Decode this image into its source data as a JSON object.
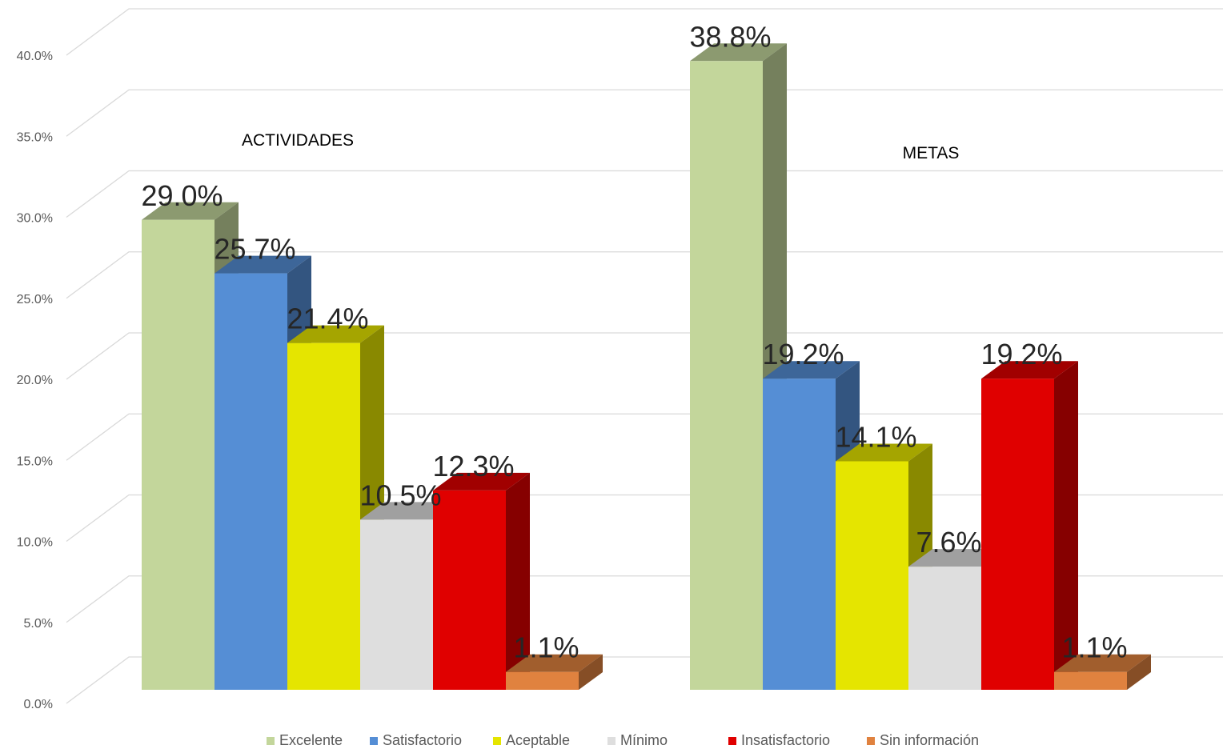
{
  "chart_data": {
    "type": "bar",
    "categories": [
      "ACTIVIDADES",
      "METAS"
    ],
    "series": [
      {
        "name": "Excelente",
        "values": [
          29.0,
          38.8
        ],
        "color": "#c3d69b"
      },
      {
        "name": "Satisfactorio",
        "values": [
          25.7,
          19.2
        ],
        "color": "#558ed5"
      },
      {
        "name": "Aceptable",
        "values": [
          21.4,
          14.1
        ],
        "color": "#e5e500"
      },
      {
        "name": "Mínimo",
        "values": [
          10.5,
          7.6
        ],
        "color": "#dedede"
      },
      {
        "name": "Insatisfactorio",
        "values": [
          12.3,
          19.2
        ],
        "color": "#e00000"
      },
      {
        "name": "Sin información",
        "values": [
          1.1,
          1.1
        ],
        "color": "#e0823f"
      }
    ],
    "data_labels": [
      [
        "29.0%",
        "38.8%"
      ],
      [
        "25.7%",
        "19.2%"
      ],
      [
        "21.4%",
        "14.1%"
      ],
      [
        "10.5%",
        "7.6%"
      ],
      [
        "12.3%",
        "19.2%"
      ],
      [
        "1.1%",
        "1.1%"
      ]
    ],
    "yticks": [
      "0.0%",
      "5.0%",
      "10.0%",
      "15.0%",
      "20.0%",
      "25.0%",
      "30.0%",
      "35.0%",
      "40.0%"
    ],
    "ylim": [
      0,
      40
    ],
    "grid": true,
    "three_d": true,
    "legend_position": "bottom"
  }
}
